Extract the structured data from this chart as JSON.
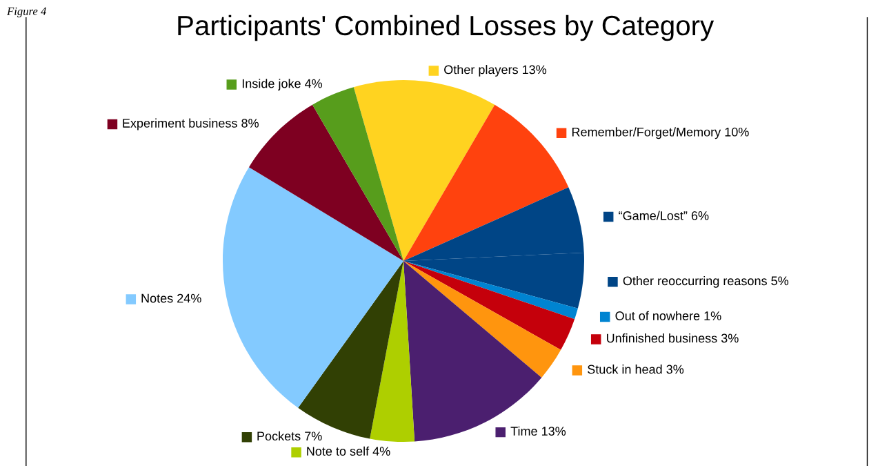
{
  "chart_data": {
    "type": "pie",
    "legend": "right",
    "title": "Participants' Combined Losses by Category",
    "annotations": [
      "Figure 4"
    ],
    "categories": [
      "Other players",
      "Remember/Forget/Memory",
      "“Game/Lost”",
      "Other reoccurring reasons",
      "Out of nowhere",
      "Unfinished business",
      "Stuck in head",
      "Time",
      "Note to self",
      "Pockets",
      "Notes",
      "Experiment business",
      "Inside joke"
    ],
    "values": [
      13,
      10,
      6,
      5,
      1,
      3,
      3,
      13,
      4,
      7,
      24,
      8,
      4
    ],
    "value_labels": [
      "13%",
      "10%",
      "6%",
      "5%",
      "1%",
      "3%",
      "3%",
      "13%",
      "4%",
      "7%",
      "24%",
      "8%",
      "4%"
    ],
    "colors": [
      "#ffd320",
      "#ff420e",
      "#004586",
      "#004586",
      "#0084d1",
      "#c5000b",
      "#ff950e",
      "#4b1f6f",
      "#aecf00",
      "#314004",
      "#83caff",
      "#7e0021",
      "#579d1c"
    ]
  }
}
